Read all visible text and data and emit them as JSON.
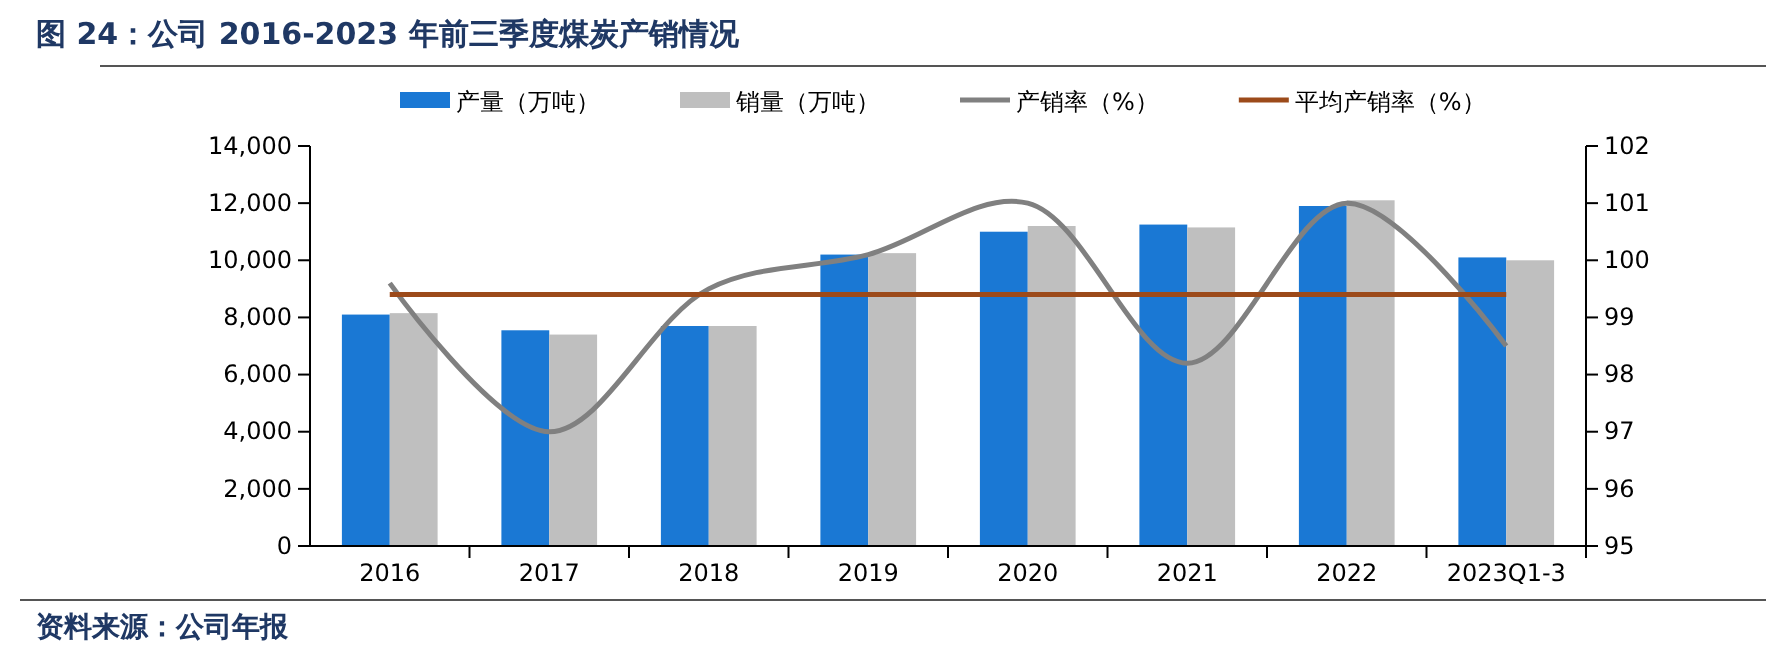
{
  "chart_data": {
    "type": "bar",
    "title": "图 24：公司 2016-2023 年前三季度煤炭产销情况",
    "categories": [
      "2016",
      "2017",
      "2018",
      "2019",
      "2020",
      "2021",
      "2022",
      "2023Q1-3"
    ],
    "series": [
      {
        "name": "产量（万吨）",
        "color": "#1a78d4",
        "values": [
          8100,
          7550,
          7700,
          10200,
          11000,
          11250,
          11900,
          10100
        ]
      },
      {
        "name": "销量（万吨）",
        "color": "#bfbfbf",
        "values": [
          8150,
          7400,
          7700,
          10250,
          11200,
          11150,
          12100,
          10000
        ]
      },
      {
        "name": "产销率（%）",
        "type": "line",
        "axis": "y2",
        "color": "#808080",
        "values": [
          99.6,
          97.0,
          99.5,
          100.1,
          101.0,
          98.2,
          101.0,
          98.5
        ]
      }
    ],
    "ref_lines": [
      {
        "axis": "y2",
        "value": 99.4,
        "label": "平均产销率（%）",
        "color": "#9c4a1a"
      }
    ],
    "ylim": [
      0,
      14000
    ],
    "yticks": [
      {
        "value": 0,
        "label": "0"
      },
      {
        "value": 2000,
        "label": "2,000"
      },
      {
        "value": 4000,
        "label": "4,000"
      },
      {
        "value": 6000,
        "label": "6,000"
      },
      {
        "value": 8000,
        "label": "8,000"
      },
      {
        "value": 10000,
        "label": "10,000"
      },
      {
        "value": 12000,
        "label": "12,000"
      },
      {
        "value": 14000,
        "label": "14,000"
      }
    ],
    "y2lim": [
      95,
      102
    ],
    "y2ticks": [
      95,
      96,
      97,
      98,
      99,
      100,
      101,
      102
    ],
    "legend": "top",
    "grid": false,
    "annotations": [
      "资料来源：公司年报"
    ]
  }
}
